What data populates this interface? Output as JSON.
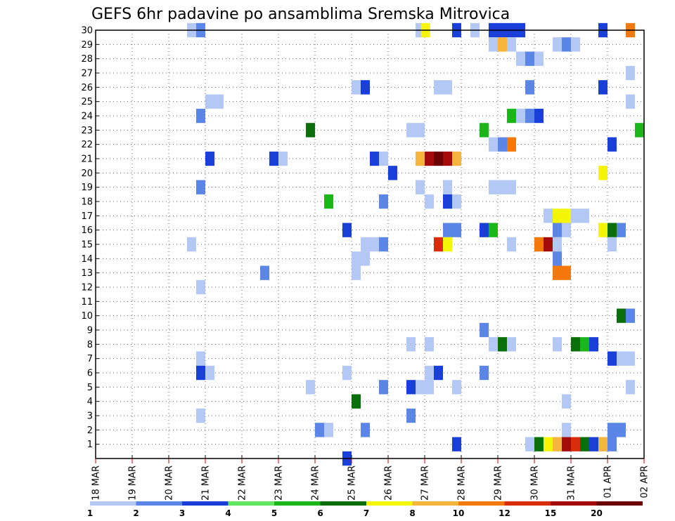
{
  "chart_data": {
    "type": "heatmap",
    "title": "GEFS 6hr padavine po ansamblima Sremska Mitrovica",
    "x_ticks": [
      "18 MAR",
      "19 MAR",
      "20 MAR",
      "21 MAR",
      "22 MAR",
      "23 MAR",
      "24 MAR",
      "25 MAR",
      "26 MAR",
      "27 MAR",
      "28 MAR",
      "29 MAR",
      "30 MAR",
      "31 MAR",
      "01 APR",
      "02 APR"
    ],
    "y_ticks": [
      "1",
      "2",
      "3",
      "4",
      "5",
      "6",
      "7",
      "8",
      "9",
      "10",
      "11",
      "12",
      "13",
      "14",
      "15",
      "16",
      "17",
      "18",
      "19",
      "20",
      "21",
      "22",
      "23",
      "24",
      "25",
      "26",
      "27",
      "28",
      "29",
      "30"
    ],
    "x_range_days": [
      0,
      15
    ],
    "y_range": [
      0,
      30
    ],
    "grid": true,
    "legend": {
      "placement": "bottom",
      "labels": [
        "1",
        "2",
        "3",
        "4",
        "5",
        "6",
        "7",
        "8",
        "10",
        "12",
        "15",
        "20"
      ],
      "colors": [
        "#b3c8f5",
        "#5b86e8",
        "#1a3fd8",
        "#5fe85f",
        "#1ab71a",
        "#0a6e0a",
        "#f5f50a",
        "#f5b43c",
        "#f5780a",
        "#d72d0a",
        "#a50a0a",
        "#6b0000"
      ]
    },
    "cells": [
      [
        30,
        2.5,
        0
      ],
      [
        30,
        2.75,
        1
      ],
      [
        30,
        8.75,
        0
      ],
      [
        30,
        8.9,
        6
      ],
      [
        30,
        9.75,
        2
      ],
      [
        30,
        10.25,
        0
      ],
      [
        30,
        10.75,
        2
      ],
      [
        30,
        11,
        2
      ],
      [
        30,
        11.25,
        2
      ],
      [
        30,
        11.5,
        2
      ],
      [
        30,
        13.75,
        2
      ],
      [
        30,
        14.5,
        8
      ],
      [
        29,
        10.75,
        0
      ],
      [
        29,
        11,
        7
      ],
      [
        29,
        11.25,
        0
      ],
      [
        29,
        12.5,
        0
      ],
      [
        29,
        12.75,
        1
      ],
      [
        29,
        13,
        0
      ],
      [
        28,
        11.5,
        0
      ],
      [
        28,
        11.75,
        1
      ],
      [
        28,
        12,
        0
      ],
      [
        27,
        14.5,
        0
      ],
      [
        26,
        7,
        0
      ],
      [
        26,
        7.25,
        2
      ],
      [
        26,
        9.25,
        0
      ],
      [
        26,
        9.5,
        0
      ],
      [
        26,
        11.75,
        1
      ],
      [
        26,
        13.75,
        2
      ],
      [
        25,
        3,
        0
      ],
      [
        25,
        3.25,
        0
      ],
      [
        25,
        14.5,
        0
      ],
      [
        24,
        2.75,
        1
      ],
      [
        24,
        11.25,
        4
      ],
      [
        24,
        11.5,
        0
      ],
      [
        24,
        11.75,
        1
      ],
      [
        24,
        12,
        2
      ],
      [
        23,
        5.75,
        5
      ],
      [
        23,
        8.5,
        0
      ],
      [
        23,
        8.75,
        0
      ],
      [
        23,
        10.5,
        4
      ],
      [
        23,
        14.75,
        4
      ],
      [
        22,
        10.75,
        0
      ],
      [
        22,
        11,
        1
      ],
      [
        22,
        11.25,
        8
      ],
      [
        22,
        14,
        2
      ],
      [
        21,
        3,
        2
      ],
      [
        21,
        4.75,
        2
      ],
      [
        21,
        5,
        0
      ],
      [
        21,
        7.5,
        2
      ],
      [
        21,
        7.75,
        0
      ],
      [
        21,
        8.75,
        7
      ],
      [
        21,
        9,
        10
      ],
      [
        21,
        9.25,
        11
      ],
      [
        21,
        9.5,
        10
      ],
      [
        21,
        9.75,
        7
      ],
      [
        20,
        8,
        2
      ],
      [
        20,
        13.75,
        6
      ],
      [
        19,
        2.75,
        1
      ],
      [
        19,
        8.75,
        0
      ],
      [
        19,
        9.5,
        0
      ],
      [
        19,
        10.75,
        0
      ],
      [
        19,
        11,
        0
      ],
      [
        19,
        11.25,
        0
      ],
      [
        18,
        6.25,
        4
      ],
      [
        18,
        7.75,
        1
      ],
      [
        18,
        9,
        0
      ],
      [
        18,
        9.5,
        2
      ],
      [
        18,
        9.75,
        0
      ],
      [
        17,
        12.25,
        0
      ],
      [
        17,
        12.5,
        6
      ],
      [
        17,
        12.75,
        6
      ],
      [
        17,
        13,
        0
      ],
      [
        17,
        13.25,
        0
      ],
      [
        16,
        6.75,
        2
      ],
      [
        16,
        9.5,
        1
      ],
      [
        16,
        9.75,
        1
      ],
      [
        16,
        10.5,
        2
      ],
      [
        16,
        10.75,
        4
      ],
      [
        16,
        12.5,
        1
      ],
      [
        16,
        12.75,
        0
      ],
      [
        16,
        13.75,
        6
      ],
      [
        16,
        14,
        5
      ],
      [
        16,
        14.25,
        1
      ],
      [
        15,
        2.5,
        0
      ],
      [
        15,
        7.25,
        0
      ],
      [
        15,
        7.5,
        0
      ],
      [
        15,
        7.75,
        1
      ],
      [
        15,
        9.25,
        9
      ],
      [
        15,
        9.5,
        6
      ],
      [
        15,
        11.25,
        0
      ],
      [
        15,
        12,
        8
      ],
      [
        15,
        12.25,
        10
      ],
      [
        15,
        12.5,
        0
      ],
      [
        15,
        14,
        0
      ],
      [
        14,
        7,
        0
      ],
      [
        14,
        7.25,
        0
      ],
      [
        14,
        12.5,
        1
      ],
      [
        13,
        4.5,
        1
      ],
      [
        13,
        7,
        0
      ],
      [
        13,
        12.5,
        8
      ],
      [
        13,
        12.75,
        8
      ],
      [
        12,
        2.75,
        0
      ],
      [
        10,
        14.25,
        5
      ],
      [
        10,
        14.5,
        1
      ],
      [
        9,
        10.5,
        1
      ],
      [
        8,
        8.5,
        0
      ],
      [
        8,
        9,
        0
      ],
      [
        8,
        10.75,
        0
      ],
      [
        8,
        11,
        5
      ],
      [
        8,
        11.25,
        0
      ],
      [
        8,
        12.5,
        0
      ],
      [
        8,
        13,
        5
      ],
      [
        8,
        13.25,
        4
      ],
      [
        8,
        13.5,
        2
      ],
      [
        7,
        2.75,
        0
      ],
      [
        7,
        14,
        2
      ],
      [
        7,
        14.25,
        0
      ],
      [
        7,
        14.5,
        0
      ],
      [
        6,
        2.75,
        2
      ],
      [
        6,
        3,
        0
      ],
      [
        6,
        6.75,
        0
      ],
      [
        6,
        9,
        0
      ],
      [
        6,
        9.25,
        2
      ],
      [
        6,
        10.5,
        1
      ],
      [
        5,
        5.75,
        0
      ],
      [
        5,
        7.75,
        1
      ],
      [
        5,
        8.5,
        2
      ],
      [
        5,
        8.75,
        0
      ],
      [
        5,
        9,
        0
      ],
      [
        5,
        9.75,
        0
      ],
      [
        5,
        14.5,
        0
      ],
      [
        4,
        7,
        5
      ],
      [
        4,
        12.75,
        0
      ],
      [
        3,
        2.75,
        0
      ],
      [
        3,
        8.5,
        1
      ],
      [
        2,
        6,
        1
      ],
      [
        2,
        6.25,
        0
      ],
      [
        2,
        7.25,
        1
      ],
      [
        2,
        12.75,
        0
      ],
      [
        2,
        14,
        1
      ],
      [
        2,
        14.25,
        1
      ],
      [
        1,
        9.75,
        2
      ],
      [
        1,
        11.75,
        0
      ],
      [
        1,
        12,
        5
      ],
      [
        1,
        12.25,
        6
      ],
      [
        1,
        12.5,
        7
      ],
      [
        1,
        12.75,
        10
      ],
      [
        1,
        13,
        9
      ],
      [
        1,
        13.25,
        5
      ],
      [
        1,
        13.5,
        2
      ],
      [
        1,
        13.75,
        7
      ],
      [
        1,
        14,
        1
      ],
      [
        0,
        6.75,
        2
      ]
    ]
  }
}
